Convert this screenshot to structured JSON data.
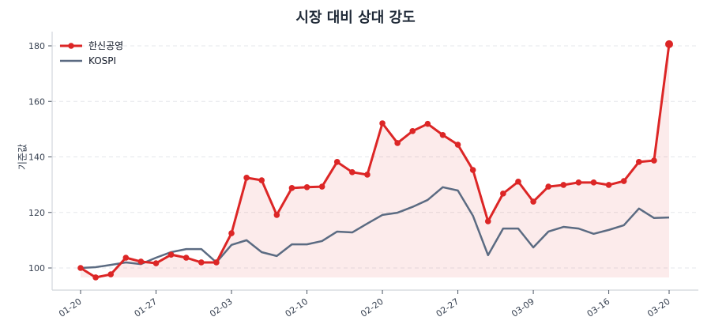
{
  "chart_data": {
    "type": "line",
    "title": "시장 대비 상대 강도",
    "xlabel": "",
    "ylabel": "기준값",
    "ylim": [
      93,
      185
    ],
    "yticks": [
      100,
      120,
      140,
      160,
      180
    ],
    "xtick_labels": [
      "01-20",
      "01-27",
      "02-03",
      "02-10",
      "02-20",
      "02-27",
      "03-09",
      "03-16",
      "03-20"
    ],
    "xtick_indices": [
      0,
      5,
      10,
      15,
      20,
      25,
      30,
      35,
      39
    ],
    "grid": true,
    "legend_position": "upper left",
    "series": [
      {
        "name": "한신공영",
        "color": "#dc2626",
        "marker": "circle",
        "fill": true,
        "values": [
          100,
          96.6,
          97.7,
          103.7,
          102.3,
          101.7,
          104.8,
          103.7,
          102,
          102,
          112.5,
          132.5,
          131.6,
          119.1,
          128.8,
          129.1,
          129.3,
          138.2,
          134.5,
          133.6,
          152.1,
          145,
          149.3,
          151.9,
          147.9,
          144.4,
          135.3,
          116.8,
          126.8,
          131.1,
          123.9,
          129.3,
          129.9,
          130.8,
          130.8,
          129.9,
          131.3,
          138.2,
          138.7,
          180.6
        ]
      },
      {
        "name": "KOSPI",
        "color": "#5b6b82",
        "marker": "none",
        "fill": false,
        "values": [
          100,
          100.3,
          101.1,
          102,
          101.4,
          103.7,
          105.7,
          106.8,
          106.8,
          102,
          108.3,
          110,
          105.7,
          104.3,
          108.5,
          108.5,
          109.7,
          113.1,
          112.8,
          116,
          119.1,
          119.9,
          122,
          124.5,
          129.1,
          127.9,
          118.8,
          104.6,
          114.2,
          114.2,
          107.4,
          113.1,
          114.8,
          114.2,
          112.3,
          113.7,
          115.4,
          121.4,
          118,
          118.2
        ]
      }
    ]
  }
}
